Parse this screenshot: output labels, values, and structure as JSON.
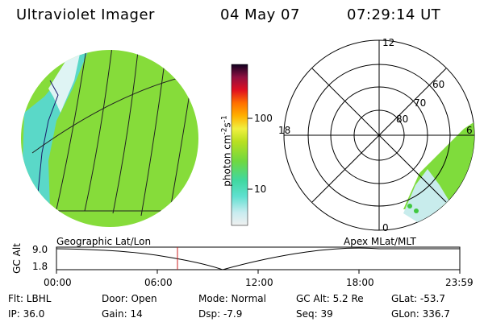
{
  "header": {
    "instrument": "Ultraviolet Imager",
    "date": "04 May 07",
    "time": "07:29:14 UT"
  },
  "colorbar": {
    "unit_label": "photon cm",
    "unit_exp1": "-2",
    "unit_s": "s",
    "unit_exp2": "-1",
    "tick_labels": [
      "100",
      "10"
    ]
  },
  "polar_plot": {
    "mlt_labels": [
      "12",
      "18",
      "6",
      "0"
    ],
    "mlat_labels": [
      "60",
      "70",
      "80"
    ]
  },
  "orbit_panel": {
    "left_title": "Geographic Lat/Lon",
    "right_title": "Apex  MLat/MLT",
    "y_axis_title": "GC Alt",
    "y_tick_labels": [
      "9.0",
      "1.8"
    ],
    "x_tick_labels": [
      "00:00",
      "06:00",
      "12:00",
      "18:00",
      "23:59"
    ]
  },
  "status": {
    "filter": "Flt: LBHL",
    "ip": "IP: 36.0",
    "door": "Door: Open",
    "gain": "Gain: 14",
    "mode": "Mode: Normal",
    "dsp": "Dsp:    -7.9",
    "gc_alt": "GC Alt: 5.2 Re",
    "seq": "Seq: 39",
    "glat": "GLat:  -53.7",
    "glon": "GLon: 336.7"
  },
  "colors": {
    "globe_fill": "#7fdc3c",
    "aurora_fill": "#4fd8c0",
    "cursor_line": "#cc2222"
  }
}
